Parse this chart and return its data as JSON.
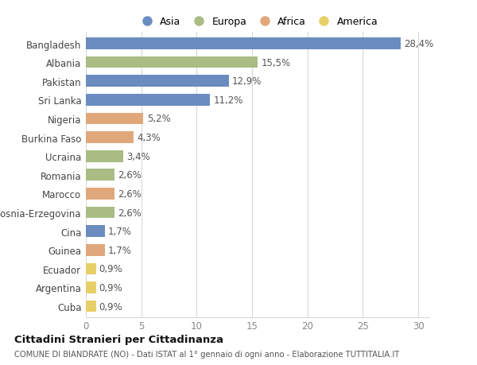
{
  "categories": [
    "Bangladesh",
    "Albania",
    "Pakistan",
    "Sri Lanka",
    "Nigeria",
    "Burkina Faso",
    "Ucraina",
    "Romania",
    "Marocco",
    "Bosnia-Erzegovina",
    "Cina",
    "Guinea",
    "Ecuador",
    "Argentina",
    "Cuba"
  ],
  "values": [
    28.4,
    15.5,
    12.9,
    11.2,
    5.2,
    4.3,
    3.4,
    2.6,
    2.6,
    2.6,
    1.7,
    1.7,
    0.9,
    0.9,
    0.9
  ],
  "labels": [
    "28,4%",
    "15,5%",
    "12,9%",
    "11,2%",
    "5,2%",
    "4,3%",
    "3,4%",
    "2,6%",
    "2,6%",
    "2,6%",
    "1,7%",
    "1,7%",
    "0,9%",
    "0,9%",
    "0,9%"
  ],
  "continents": [
    "Asia",
    "Europa",
    "Asia",
    "Asia",
    "Africa",
    "Africa",
    "Europa",
    "Europa",
    "Africa",
    "Europa",
    "Asia",
    "Africa",
    "America",
    "America",
    "America"
  ],
  "continent_colors": {
    "Asia": "#6b8cbf",
    "Europa": "#a8bc84",
    "Africa": "#e0a87a",
    "America": "#e8d068"
  },
  "legend_labels": [
    "Asia",
    "Europa",
    "Africa",
    "America"
  ],
  "legend_colors": [
    "#6b8cbf",
    "#a8bc84",
    "#e0a87a",
    "#e8d068"
  ],
  "xlim": [
    0,
    31
  ],
  "xticks": [
    0,
    5,
    10,
    15,
    20,
    25,
    30
  ],
  "title": "Cittadini Stranieri per Cittadinanza",
  "subtitle": "COMUNE DI BIANDRATE (NO) - Dati ISTAT al 1° gennaio di ogni anno - Elaborazione TUTTITALIA.IT",
  "bg_color": "#ffffff",
  "bar_height": 0.62,
  "label_fontsize": 8.5,
  "tick_fontsize": 8.5,
  "grid_color": "#d8d8d8",
  "label_color": "#555555",
  "ytick_color": "#444444"
}
